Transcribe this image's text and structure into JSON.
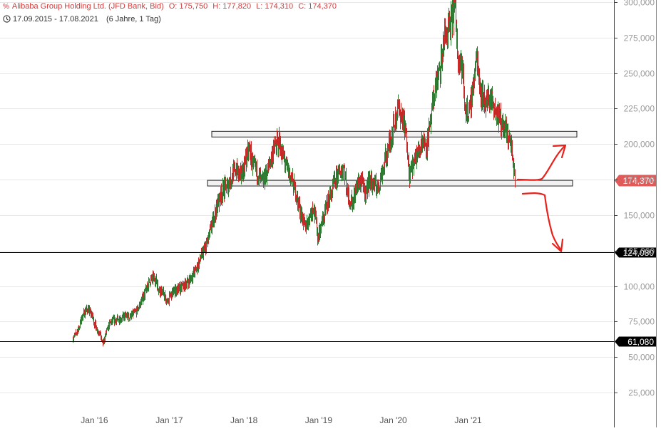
{
  "header": {
    "icon": "percent-icon",
    "instrument": "Alibaba Group Holding Ltd. (JFD Bank, Bid)",
    "open": "O: 175,750",
    "high": "H: 177,820",
    "low": "L: 174,310",
    "close": "C: 174,370",
    "range_icon": "clock-icon",
    "date_range": "17.09.2015 - 17.08.2021",
    "period": "(6 Jahre, 1 Tag)"
  },
  "colors": {
    "up": "#2e7d32",
    "down": "#c62828",
    "price_tag": "#e05a5a",
    "level_tag": "#000000",
    "zone_fill": "#e6e6e6",
    "arrow": "#e8211b"
  },
  "chart_data": {
    "type": "candlestick",
    "title": "Alibaba Group Holding Ltd. (JFD Bank, Bid)",
    "xlabel": "",
    "ylabel": "",
    "x_ticks": [
      "Jan '16",
      "Jan '17",
      "Jan '18",
      "Jan '19",
      "Jan '20",
      "Jan '21"
    ],
    "y_ticks": [
      25000,
      50000,
      75000,
      100000,
      125000,
      150000,
      175000,
      200000,
      225000,
      250000,
      275000,
      300000
    ],
    "y_tick_labels": [
      "25,000",
      "50,000",
      "75,000",
      "100,000",
      "125,000",
      "150,000",
      "175,000",
      "200,000",
      "225,000",
      "250,000",
      "275,000",
      "300,000"
    ],
    "ylim": [
      0,
      302000
    ],
    "xlim": [
      "2015-09-17",
      "2021-08-17"
    ],
    "last_price": {
      "value": 174370,
      "label": "174,370"
    },
    "horizontal_levels": [
      {
        "value": 124080,
        "label": "124,080"
      },
      {
        "value": 61080,
        "label": "61,080"
      }
    ],
    "zones": [
      {
        "low": 205000,
        "high": 209000
      },
      {
        "low": 170500,
        "high": 174500
      }
    ],
    "annotations": [
      "red arrow up from current price toward ~200,000",
      "red arrow down toward ~124,000"
    ],
    "close_series": [
      [
        "2015-09-17",
        63000
      ],
      [
        "2015-10-15",
        70000
      ],
      [
        "2015-11-05",
        80000
      ],
      [
        "2015-11-26",
        84000
      ],
      [
        "2015-12-17",
        80000
      ],
      [
        "2016-01-07",
        71000
      ],
      [
        "2016-01-28",
        66000
      ],
      [
        "2016-02-11",
        59000
      ],
      [
        "2016-02-25",
        67000
      ],
      [
        "2016-03-17",
        74000
      ],
      [
        "2016-04-07",
        76000
      ],
      [
        "2016-05-05",
        77000
      ],
      [
        "2016-05-26",
        79000
      ],
      [
        "2016-06-16",
        78000
      ],
      [
        "2016-07-07",
        80000
      ],
      [
        "2016-07-28",
        83000
      ],
      [
        "2016-08-18",
        90000
      ],
      [
        "2016-09-08",
        97000
      ],
      [
        "2016-09-29",
        104000
      ],
      [
        "2016-10-20",
        106000
      ],
      [
        "2016-11-10",
        98000
      ],
      [
        "2016-12-01",
        95000
      ],
      [
        "2016-12-22",
        88000
      ],
      [
        "2017-01-12",
        95000
      ],
      [
        "2017-02-02",
        97000
      ],
      [
        "2017-02-23",
        98000
      ],
      [
        "2017-03-16",
        101000
      ],
      [
        "2017-04-06",
        104000
      ],
      [
        "2017-04-27",
        108000
      ],
      [
        "2017-05-18",
        114000
      ],
      [
        "2017-06-08",
        122000
      ],
      [
        "2017-06-29",
        128000
      ],
      [
        "2017-07-20",
        139000
      ],
      [
        "2017-08-10",
        151000
      ],
      [
        "2017-08-31",
        161000
      ],
      [
        "2017-09-21",
        168000
      ],
      [
        "2017-10-12",
        171000
      ],
      [
        "2017-11-02",
        178000
      ],
      [
        "2017-11-23",
        183000
      ],
      [
        "2017-12-14",
        177000
      ],
      [
        "2018-01-04",
        186000
      ],
      [
        "2018-01-25",
        197000
      ],
      [
        "2018-02-15",
        183000
      ],
      [
        "2018-03-08",
        180000
      ],
      [
        "2018-03-29",
        172000
      ],
      [
        "2018-04-19",
        178000
      ],
      [
        "2018-05-10",
        189000
      ],
      [
        "2018-05-31",
        198000
      ],
      [
        "2018-06-21",
        202000
      ],
      [
        "2018-07-12",
        190000
      ],
      [
        "2018-08-02",
        181000
      ],
      [
        "2018-08-23",
        175000
      ],
      [
        "2018-09-13",
        163000
      ],
      [
        "2018-10-04",
        152000
      ],
      [
        "2018-10-25",
        141000
      ],
      [
        "2018-11-15",
        148000
      ],
      [
        "2018-12-06",
        157000
      ],
      [
        "2018-12-27",
        135000
      ],
      [
        "2019-01-17",
        144000
      ],
      [
        "2019-02-07",
        158000
      ],
      [
        "2019-02-28",
        164000
      ],
      [
        "2019-03-21",
        174000
      ],
      [
        "2019-04-11",
        180000
      ],
      [
        "2019-05-02",
        184000
      ],
      [
        "2019-05-23",
        164000
      ],
      [
        "2019-06-13",
        158000
      ],
      [
        "2019-07-04",
        170000
      ],
      [
        "2019-07-25",
        174000
      ],
      [
        "2019-08-15",
        165000
      ],
      [
        "2019-09-05",
        174000
      ],
      [
        "2019-09-26",
        172000
      ],
      [
        "2019-10-17",
        169000
      ],
      [
        "2019-11-07",
        181000
      ],
      [
        "2019-11-28",
        192000
      ],
      [
        "2019-12-19",
        205000
      ],
      [
        "2020-01-09",
        217000
      ],
      [
        "2020-01-23",
        225000
      ],
      [
        "2020-02-13",
        219000
      ],
      [
        "2020-03-05",
        204000
      ],
      [
        "2020-03-19",
        178000
      ],
      [
        "2020-04-09",
        187000
      ],
      [
        "2020-04-30",
        194000
      ],
      [
        "2020-05-21",
        203000
      ],
      [
        "2020-06-11",
        199000
      ],
      [
        "2020-07-02",
        215000
      ],
      [
        "2020-07-23",
        242000
      ],
      [
        "2020-08-13",
        249000
      ],
      [
        "2020-09-03",
        272000
      ],
      [
        "2020-09-24",
        281000
      ],
      [
        "2020-10-15",
        289000
      ],
      [
        "2020-10-27",
        297000
      ],
      [
        "2020-11-12",
        263000
      ],
      [
        "2020-12-03",
        252000
      ],
      [
        "2020-12-17",
        224000
      ],
      [
        "2021-01-07",
        223000
      ],
      [
        "2021-01-28",
        245000
      ],
      [
        "2021-02-11",
        263000
      ],
      [
        "2021-03-04",
        236000
      ],
      [
        "2021-03-25",
        230000
      ],
      [
        "2021-04-15",
        233000
      ],
      [
        "2021-05-06",
        227000
      ],
      [
        "2021-05-27",
        220000
      ],
      [
        "2021-06-17",
        213000
      ],
      [
        "2021-07-08",
        207000
      ],
      [
        "2021-07-29",
        200000
      ],
      [
        "2021-08-17",
        174370
      ]
    ]
  }
}
